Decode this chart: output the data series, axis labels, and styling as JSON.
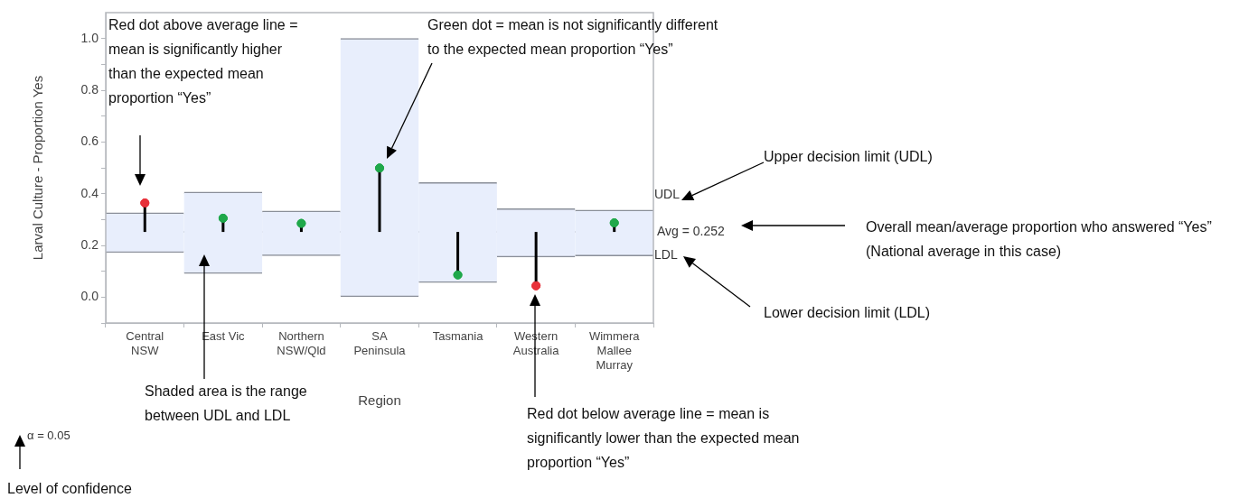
{
  "chart_data": {
    "type": "bar",
    "ylabel": "Larval Culture - Proportion Yes",
    "xlabel": "Region",
    "categories": [
      "Central\nNSW",
      "East Vic",
      "Northern\nNSW/Qld",
      "SA\nPeninsula",
      "Tasmania",
      "Western\nAustralia",
      "Wimmera\nMallee\nMurray"
    ],
    "series": [
      {
        "color": "#e8eefc",
        "base": [
          0.172,
          0.091,
          0.16,
          0.0,
          0.056,
          0.155,
          0.159
        ],
        "values": [
          0.154,
          0.315,
          0.173,
          1.0,
          0.387,
          0.187,
          0.178
        ]
      },
      {
        "type": "scatter",
        "errors": [
          [
            0.252,
            0.364
          ],
          [
            0.252,
            0.305
          ],
          [
            0.252,
            0.285
          ],
          [
            0.252,
            0.499
          ],
          [
            0.086,
            0.252
          ],
          [
            0.044,
            0.252
          ],
          [
            0.252,
            0.287
          ]
        ],
        "colors": [
          "#e8313a",
          "#1fa84a",
          "#1fa84a",
          "#1fa84a",
          "#1fa84a",
          "#e8313a",
          "#1fa84a"
        ],
        "values": [
          0.364,
          0.305,
          0.285,
          0.499,
          0.086,
          0.044,
          0.287
        ]
      }
    ],
    "ylim": [
      -0.1,
      1.1
    ],
    "yticks": [
      {
        "value": -0.1,
        "label": null
      },
      {
        "value": 0,
        "label": "0.0"
      },
      {
        "value": 0.1,
        "label": null
      },
      0.2,
      {
        "value": 0.3,
        "label": null
      },
      0.4,
      {
        "value": 0.5,
        "label": null
      },
      0.6,
      {
        "value": 0.7,
        "label": null
      },
      0.8,
      {
        "value": 0.9,
        "label": null
      },
      {
        "value": 1,
        "label": "1.0"
      }
    ],
    "ref_lines": [
      {
        "axis": "y",
        "value": 0.252,
        "label": "Avg = 0.252",
        "color": "#a0a4ab"
      }
    ],
    "annotations": [
      "Red dot above average line = mean is significantly higher than the expected mean proportion “Yes”",
      "Green dot = mean is not significantly different to the expected mean proportion “Yes”",
      "Upper decision limit (UDL)",
      "Overall mean/average proportion who answered “Yes” (National average in this case)",
      "Lower decision limit (LDL)",
      "Shaded area is the range between UDL and LDL",
      "Red dot below average line = mean is significantly lower than the expected mean proportion “Yes”",
      "α = 0.05",
      "Level of confidence",
      "UDL",
      "LDL"
    ],
    "grid": false,
    "legend": false,
    "marker": "circle"
  }
}
